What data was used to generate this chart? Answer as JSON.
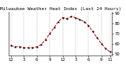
{
  "title": "Milwaukee Weather Heat Index (Last 24 Hours)",
  "title_fontsize": 4.2,
  "background_color": "#ffffff",
  "plot_bg_color": "#ffffff",
  "grid_color": "#888888",
  "line_color": "#cc0000",
  "marker_color": "#000000",
  "x_values": [
    0,
    1,
    2,
    3,
    4,
    5,
    6,
    7,
    8,
    9,
    10,
    11,
    12,
    13,
    14,
    15,
    16,
    17,
    18,
    19,
    20,
    21,
    22,
    23
  ],
  "y_values": [
    58,
    57,
    57,
    56,
    56,
    56,
    57,
    59,
    64,
    70,
    76,
    82,
    86,
    85,
    87,
    86,
    84,
    82,
    78,
    72,
    66,
    60,
    55,
    52
  ],
  "ylim": [
    48,
    92
  ],
  "yticks": [
    50,
    60,
    70,
    80,
    90
  ],
  "ytick_labels": [
    "50",
    "60",
    "70",
    "80",
    "90"
  ],
  "xtick_positions": [
    0,
    3,
    6,
    9,
    12,
    15,
    18,
    21,
    23
  ],
  "xtick_labels": [
    "12",
    "3",
    "6",
    "9",
    "12",
    "3",
    "6",
    "9",
    "11"
  ],
  "tick_fontsize": 3.8,
  "linewidth": 0.7,
  "markersize": 1.0
}
